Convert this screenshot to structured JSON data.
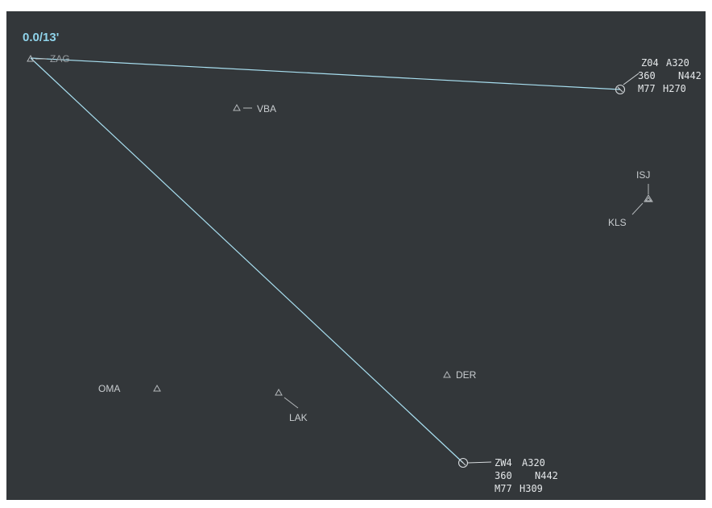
{
  "header": {
    "range_readout": "0.0/13'"
  },
  "colors": {
    "background": "#33373a",
    "route_line": "#a8dff0",
    "label": "#c8cccf",
    "fix_symbol": "#b4b8bb",
    "accent": "#8fd3ea"
  },
  "fixes": [
    {
      "id": "ZAG",
      "name": "ZAG"
    },
    {
      "id": "VBA",
      "name": "VBA"
    },
    {
      "id": "ISJ",
      "name": "ISJ"
    },
    {
      "id": "KLS",
      "name": "KLS"
    },
    {
      "id": "DER",
      "name": "DER"
    },
    {
      "id": "OMA",
      "name": "OMA"
    },
    {
      "id": "LAK",
      "name": "LAK"
    }
  ],
  "aircraft": [
    {
      "callsign": "Z04",
      "type": "A320",
      "level": "360",
      "next": "N442",
      "speed": "M77",
      "heading": "H270"
    },
    {
      "callsign": "ZW4",
      "type": "A320",
      "level": "360",
      "next": "N442",
      "speed": "M77",
      "heading": "H309"
    }
  ]
}
